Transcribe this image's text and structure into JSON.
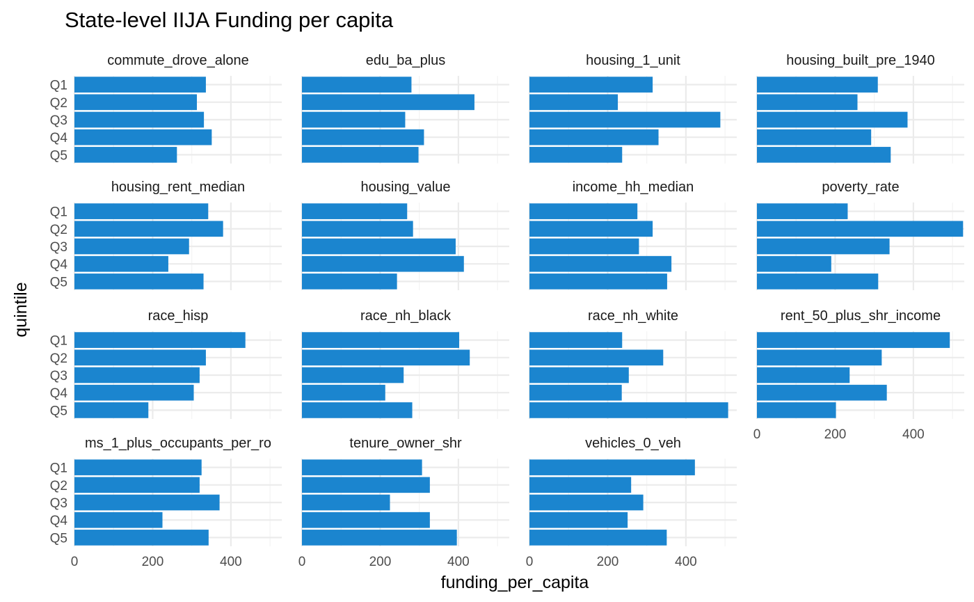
{
  "chart_data": {
    "type": "bar",
    "orientation": "horizontal",
    "facet": true,
    "title": "State-level IIJA Funding per capita",
    "xlabel": "funding_per_capita",
    "ylabel": "quintile",
    "categories": [
      "Q1",
      "Q2",
      "Q3",
      "Q4",
      "Q5"
    ],
    "xlim": [
      0,
      530
    ],
    "x_ticks": [
      0,
      200,
      400
    ],
    "bar_color": "#1b85cf",
    "grid": true,
    "panels": [
      {
        "name": "commute_drove_alone",
        "values": [
          336,
          313,
          331,
          351,
          262
        ]
      },
      {
        "name": "edu_ba_plus",
        "values": [
          280,
          441,
          264,
          312,
          298
        ]
      },
      {
        "name": "housing_1_unit",
        "values": [
          315,
          226,
          488,
          330,
          237
        ]
      },
      {
        "name": "housing_built_pre_1940",
        "values": [
          309,
          257,
          385,
          292,
          342
        ]
      },
      {
        "name": "housing_rent_median",
        "values": [
          342,
          380,
          293,
          240,
          330
        ]
      },
      {
        "name": "housing_value",
        "values": [
          269,
          284,
          393,
          414,
          243
        ]
      },
      {
        "name": "income_hh_median",
        "values": [
          276,
          315,
          280,
          363,
          352
        ]
      },
      {
        "name": "poverty_rate",
        "values": [
          232,
          527,
          339,
          190,
          310
        ]
      },
      {
        "name": "race_hisp",
        "values": [
          437,
          336,
          320,
          305,
          189
        ]
      },
      {
        "name": "race_nh_black",
        "values": [
          402,
          429,
          260,
          213,
          282
        ]
      },
      {
        "name": "race_nh_white",
        "values": [
          237,
          342,
          254,
          236,
          508
        ]
      },
      {
        "name": "rent_50_plus_shr_income",
        "values": [
          493,
          319,
          237,
          332,
          202
        ]
      },
      {
        "name": "ms_1_plus_occupants_per_ro",
        "values": [
          325,
          320,
          371,
          225,
          343
        ]
      },
      {
        "name": "tenure_owner_shr",
        "values": [
          307,
          327,
          225,
          327,
          396
        ]
      },
      {
        "name": "vehicles_0_veh",
        "values": [
          423,
          260,
          291,
          251,
          351
        ]
      }
    ]
  }
}
